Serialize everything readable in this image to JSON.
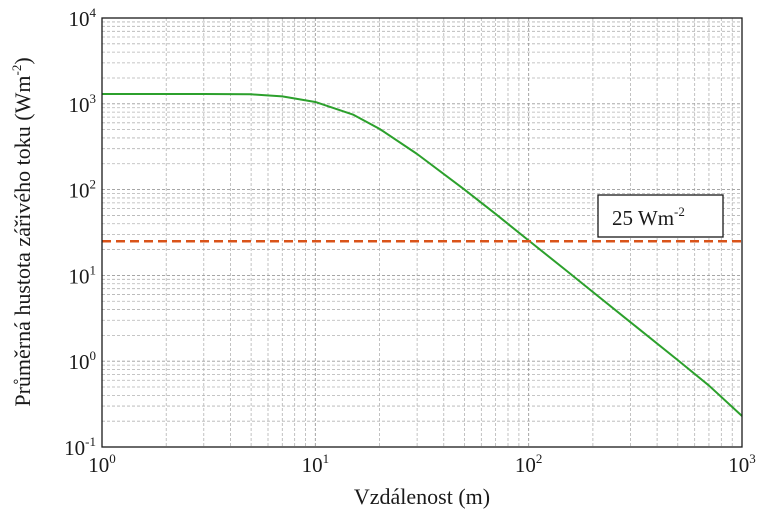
{
  "chart_data": {
    "type": "line",
    "title": "",
    "xlabel": "Vzdálenost (m)",
    "ylabel": "Průměrná hustota zářivého toku (Wm-2)",
    "ylabel_base": "Průměrná hustota zářivého toku (Wm",
    "ylabel_exp": "-2",
    "ylabel_close": ")",
    "xscale": "log",
    "yscale": "log",
    "xlim": [
      1,
      1000
    ],
    "ylim": [
      0.1,
      10000
    ],
    "grid": true,
    "x_ticks": [
      {
        "base": "10",
        "exp": "0"
      },
      {
        "base": "10",
        "exp": "1"
      },
      {
        "base": "10",
        "exp": "2"
      },
      {
        "base": "10",
        "exp": "3"
      }
    ],
    "y_ticks": [
      {
        "base": "10",
        "exp": "-1"
      },
      {
        "base": "10",
        "exp": "0"
      },
      {
        "base": "10",
        "exp": "1"
      },
      {
        "base": "10",
        "exp": "2"
      },
      {
        "base": "10",
        "exp": "3"
      },
      {
        "base": "10",
        "exp": "4"
      }
    ],
    "series": [
      {
        "color": "#2ca02c",
        "x": [
          1,
          2,
          3,
          5,
          7,
          10,
          15,
          20,
          30,
          50,
          70,
          100,
          150,
          200,
          300,
          500,
          700,
          1000
        ],
        "y": [
          1300,
          1300,
          1300,
          1290,
          1220,
          1050,
          750,
          510,
          260,
          100,
          52,
          25.5,
          11.4,
          6.4,
          2.85,
          1.03,
          0.52,
          0.23
        ]
      }
    ],
    "reference_line": {
      "y": 25,
      "color": "#d95319",
      "style": "dashed"
    },
    "annotation": {
      "text": "25 Wm",
      "exp": "-2"
    }
  }
}
